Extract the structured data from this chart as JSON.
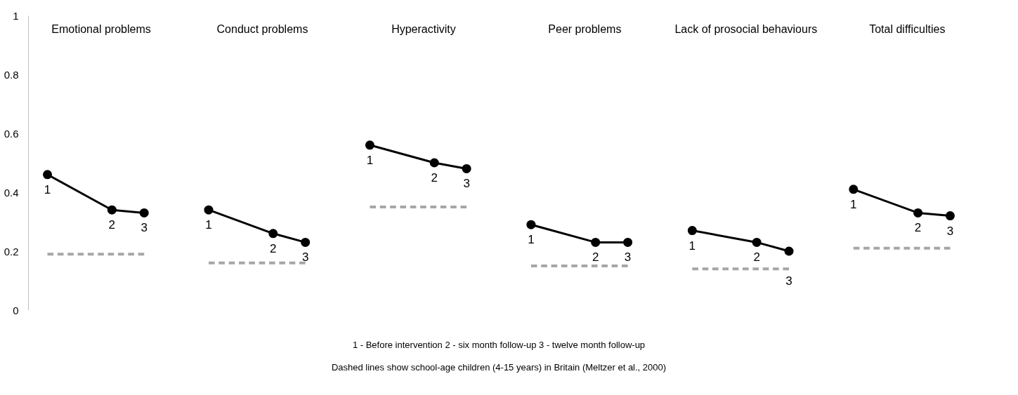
{
  "chart_data": {
    "type": "line",
    "categories": [
      "1",
      null,
      "2",
      "3",
      null,
      "1",
      null,
      "2",
      "3",
      null,
      "1",
      null,
      "2",
      "3",
      null,
      "1",
      null,
      "2",
      "3",
      null,
      "1",
      null,
      "2",
      "3",
      null,
      "1",
      null,
      "2",
      "3"
    ],
    "ylim": [
      0,
      1
    ],
    "yticks": [
      0,
      0.2,
      0.4,
      0.6,
      0.8,
      1
    ],
    "grid": false,
    "marker": "circle",
    "line_style": "solid",
    "series": [
      {
        "color": "#000000",
        "values": [
          0.46,
          null,
          0.34,
          0.33,
          null,
          null,
          null,
          null,
          null,
          null,
          null,
          null,
          null,
          null,
          null,
          null,
          null,
          null,
          null,
          null,
          null,
          null,
          null,
          null,
          null,
          null,
          null,
          null,
          null
        ]
      },
      {
        "color": "#a6a6a6",
        "line_style": "dashed",
        "marker": "none",
        "values": [
          0.19,
          0.19,
          0.19,
          0.19,
          null,
          null,
          null,
          null,
          null,
          null,
          null,
          null,
          null,
          null,
          null,
          null,
          null,
          null,
          null,
          null,
          null,
          null,
          null,
          null,
          null,
          null,
          null,
          null,
          null
        ]
      },
      {
        "color": "#000000",
        "values": [
          null,
          null,
          null,
          null,
          null,
          0.34,
          null,
          0.26,
          0.23,
          null,
          null,
          null,
          null,
          null,
          null,
          null,
          null,
          null,
          null,
          null,
          null,
          null,
          null,
          null,
          null,
          null,
          null,
          null,
          null
        ]
      },
      {
        "color": "#a6a6a6",
        "line_style": "dashed",
        "marker": "none",
        "values": [
          null,
          null,
          null,
          null,
          null,
          0.16,
          0.16,
          0.16,
          0.16,
          null,
          null,
          null,
          null,
          null,
          null,
          null,
          null,
          null,
          null,
          null,
          null,
          null,
          null,
          null,
          null,
          null,
          null,
          null,
          null
        ]
      },
      {
        "color": "#000000",
        "values": [
          null,
          null,
          null,
          null,
          null,
          null,
          null,
          null,
          null,
          null,
          0.56,
          null,
          0.5,
          0.48,
          null,
          null,
          null,
          null,
          null,
          null,
          null,
          null,
          null,
          null,
          null,
          null,
          null,
          null,
          null
        ]
      },
      {
        "color": "#a6a6a6",
        "line_style": "dashed",
        "marker": "none",
        "values": [
          null,
          null,
          null,
          null,
          null,
          null,
          null,
          null,
          null,
          null,
          0.35,
          0.35,
          0.35,
          0.35,
          null,
          null,
          null,
          null,
          null,
          null,
          null,
          null,
          null,
          null,
          null,
          null,
          null,
          null,
          null
        ]
      },
      {
        "color": "#000000",
        "values": [
          null,
          null,
          null,
          null,
          null,
          null,
          null,
          null,
          null,
          null,
          null,
          null,
          null,
          null,
          null,
          0.29,
          null,
          0.23,
          0.23,
          null,
          null,
          null,
          null,
          null,
          null,
          null,
          null,
          null,
          null
        ]
      },
      {
        "color": "#a6a6a6",
        "line_style": "dashed",
        "marker": "none",
        "values": [
          null,
          null,
          null,
          null,
          null,
          null,
          null,
          null,
          null,
          null,
          null,
          null,
          null,
          null,
          null,
          0.15,
          0.15,
          0.15,
          0.15,
          null,
          null,
          null,
          null,
          null,
          null,
          null,
          null,
          null,
          null
        ]
      },
      {
        "color": "#000000",
        "values": [
          null,
          null,
          null,
          null,
          null,
          null,
          null,
          null,
          null,
          null,
          null,
          null,
          null,
          null,
          null,
          null,
          null,
          null,
          null,
          null,
          0.27,
          null,
          0.23,
          0.2,
          null,
          null,
          null,
          null,
          null
        ]
      },
      {
        "color": "#a6a6a6",
        "line_style": "dashed",
        "marker": "none",
        "values": [
          null,
          null,
          null,
          null,
          null,
          null,
          null,
          null,
          null,
          null,
          null,
          null,
          null,
          null,
          null,
          null,
          null,
          null,
          null,
          null,
          0.14,
          0.14,
          0.14,
          0.14,
          null,
          null,
          null,
          null,
          null
        ]
      },
      {
        "color": "#000000",
        "values": [
          null,
          null,
          null,
          null,
          null,
          null,
          null,
          null,
          null,
          null,
          null,
          null,
          null,
          null,
          null,
          null,
          null,
          null,
          null,
          null,
          null,
          null,
          null,
          null,
          null,
          0.41,
          null,
          0.33,
          0.32
        ]
      },
      {
        "color": "#a6a6a6",
        "line_style": "dashed",
        "marker": "none",
        "values": [
          null,
          null,
          null,
          null,
          null,
          null,
          null,
          null,
          null,
          null,
          null,
          null,
          null,
          null,
          null,
          null,
          null,
          null,
          null,
          null,
          null,
          null,
          null,
          null,
          null,
          0.21,
          0.21,
          0.21,
          0.21
        ]
      }
    ],
    "annotations": [
      "Emotional problems",
      "Conduct problems",
      "Hyperactivity",
      "Peer problems",
      "Lack of prosocial behaviours",
      "Total difficulties",
      "1 - Before intervention    2 - six month follow-up    3 - twelve month follow-up",
      "Dashed lines show school-age children (4-15 years) in Britain (Meltzer et al., 2000)"
    ]
  }
}
